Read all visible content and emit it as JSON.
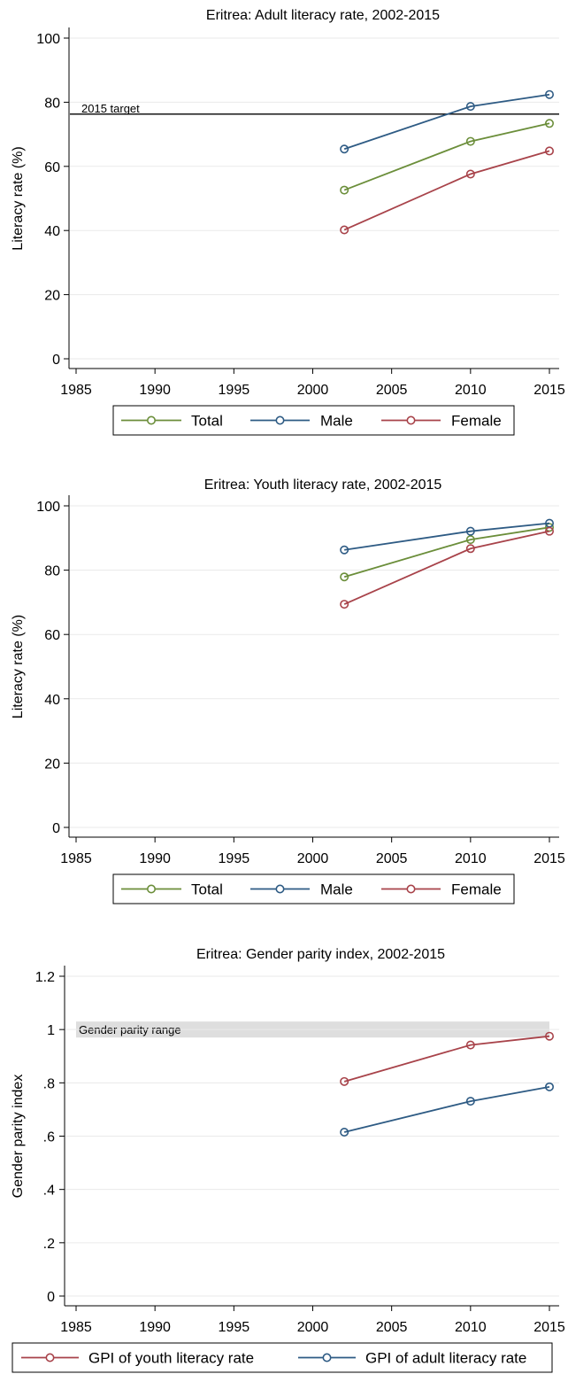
{
  "chart_data": [
    {
      "type": "line",
      "title": "Eritrea: Adult literacy rate, 2002-2015",
      "xlabel": "",
      "ylabel": "Literacy rate (%)",
      "xlim": [
        1985,
        2015
      ],
      "ylim": [
        0,
        100
      ],
      "x_ticks": [
        "1985",
        "1990",
        "1995",
        "2000",
        "2005",
        "2010",
        "2015"
      ],
      "y_ticks": [
        "0",
        "20",
        "40",
        "60",
        "80",
        "100"
      ],
      "grid": "horizontal",
      "legend_position": "bottom",
      "series": [
        {
          "name": "Total",
          "color": "#6b8e3a",
          "x": [
            2002,
            2010,
            2015
          ],
          "values": [
            52.6,
            67.8,
            73.4
          ]
        },
        {
          "name": "Male",
          "color": "#2e5b84",
          "x": [
            2002,
            2010,
            2015
          ],
          "values": [
            65.4,
            78.7,
            82.4
          ]
        },
        {
          "name": "Female",
          "color": "#a8434a",
          "x": [
            2002,
            2010,
            2015
          ],
          "values": [
            40.2,
            57.6,
            64.8
          ]
        }
      ],
      "reference_line": {
        "label": "2015 target",
        "value": 76.3
      }
    },
    {
      "type": "line",
      "title": "Eritrea: Youth literacy rate, 2002-2015",
      "xlabel": "",
      "ylabel": "Literacy rate (%)",
      "xlim": [
        1985,
        2015
      ],
      "ylim": [
        0,
        100
      ],
      "x_ticks": [
        "1985",
        "1990",
        "1995",
        "2000",
        "2005",
        "2010",
        "2015"
      ],
      "y_ticks": [
        "0",
        "20",
        "40",
        "60",
        "80",
        "100"
      ],
      "grid": "horizontal",
      "legend_position": "bottom",
      "series": [
        {
          "name": "Total",
          "color": "#6b8e3a",
          "x": [
            2002,
            2010,
            2015
          ],
          "values": [
            77.9,
            89.5,
            93.3
          ]
        },
        {
          "name": "Male",
          "color": "#2e5b84",
          "x": [
            2002,
            2010,
            2015
          ],
          "values": [
            86.3,
            92.1,
            94.6
          ]
        },
        {
          "name": "Female",
          "color": "#a8434a",
          "x": [
            2002,
            2010,
            2015
          ],
          "values": [
            69.4,
            86.7,
            92.1
          ]
        }
      ]
    },
    {
      "type": "line",
      "title": "Eritrea: Gender parity index, 2002-2015",
      "xlabel": "",
      "ylabel": "Gender parity index",
      "xlim": [
        1985,
        2015
      ],
      "ylim": [
        0,
        1.2
      ],
      "x_ticks": [
        "1985",
        "1990",
        "1995",
        "2000",
        "2005",
        "2010",
        "2015"
      ],
      "y_ticks": [
        "0",
        ".2",
        ".4",
        ".6",
        ".8",
        "1",
        "1.2"
      ],
      "grid": "horizontal",
      "legend_position": "bottom",
      "series": [
        {
          "name": "GPI of youth literacy rate",
          "color": "#a8434a",
          "x": [
            2002,
            2010,
            2015
          ],
          "values": [
            0.805,
            0.942,
            0.975
          ]
        },
        {
          "name": "GPI of adult literacy rate",
          "color": "#2e5b84",
          "x": [
            2002,
            2010,
            2015
          ],
          "values": [
            0.615,
            0.731,
            0.785
          ]
        }
      ],
      "reference_band": {
        "label": "Gender parity range",
        "range": [
          0.97,
          1.03
        ]
      }
    }
  ]
}
